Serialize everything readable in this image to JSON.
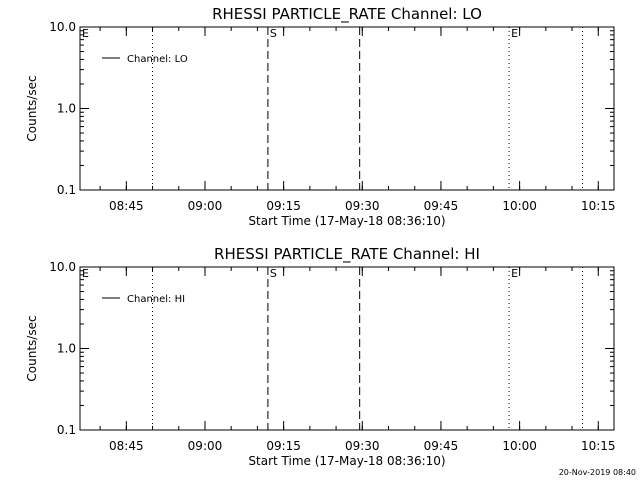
{
  "chart_data": [
    {
      "type": "line",
      "title": "RHESSI PARTICLE_RATE Channel: LO",
      "xlabel": "Start Time (17-May-18 08:36:10)",
      "ylabel": "Counts/sec",
      "y_scale": "log",
      "ylim": [
        0.1,
        10.0
      ],
      "y_ticks": [
        "0.1",
        "1.0",
        "10.0"
      ],
      "x_range": [
        "08:36:10",
        "10:18:00"
      ],
      "x_ticks": [
        "08:45",
        "09:00",
        "09:15",
        "09:30",
        "09:45",
        "10:00",
        "10:15"
      ],
      "legend": {
        "position": "top-left",
        "entries": [
          "Channel: LO"
        ]
      },
      "series": [
        {
          "name": "Channel: LO",
          "values": []
        }
      ],
      "vertical_lines": [
        {
          "time": "08:36:10",
          "style": "dotted",
          "label": "E"
        },
        {
          "time": "08:50:00",
          "style": "dotted",
          "label": ""
        },
        {
          "time": "09:12:00",
          "style": "dashed",
          "label": "S"
        },
        {
          "time": "09:29:30",
          "style": "dashed",
          "label": ""
        },
        {
          "time": "09:58:00",
          "style": "dotted",
          "label": "E"
        },
        {
          "time": "10:12:00",
          "style": "dotted",
          "label": ""
        }
      ]
    },
    {
      "type": "line",
      "title": "RHESSI PARTICLE_RATE Channel: HI",
      "xlabel": "Start Time (17-May-18 08:36:10)",
      "ylabel": "Counts/sec",
      "y_scale": "log",
      "ylim": [
        0.1,
        10.0
      ],
      "y_ticks": [
        "0.1",
        "1.0",
        "10.0"
      ],
      "x_range": [
        "08:36:10",
        "10:18:00"
      ],
      "x_ticks": [
        "08:45",
        "09:00",
        "09:15",
        "09:30",
        "09:45",
        "10:00",
        "10:15"
      ],
      "legend": {
        "position": "top-left",
        "entries": [
          "Channel: HI"
        ]
      },
      "series": [
        {
          "name": "Channel: HI",
          "values": []
        }
      ],
      "vertical_lines": [
        {
          "time": "08:36:10",
          "style": "dotted",
          "label": "E"
        },
        {
          "time": "08:50:00",
          "style": "dotted",
          "label": ""
        },
        {
          "time": "09:12:00",
          "style": "dashed",
          "label": "S"
        },
        {
          "time": "09:29:30",
          "style": "dashed",
          "label": ""
        },
        {
          "time": "09:58:00",
          "style": "dotted",
          "label": "E"
        },
        {
          "time": "10:12:00",
          "style": "dotted",
          "label": ""
        }
      ]
    }
  ],
  "footer": {
    "timestamp": "20-Nov-2019 08:40"
  }
}
